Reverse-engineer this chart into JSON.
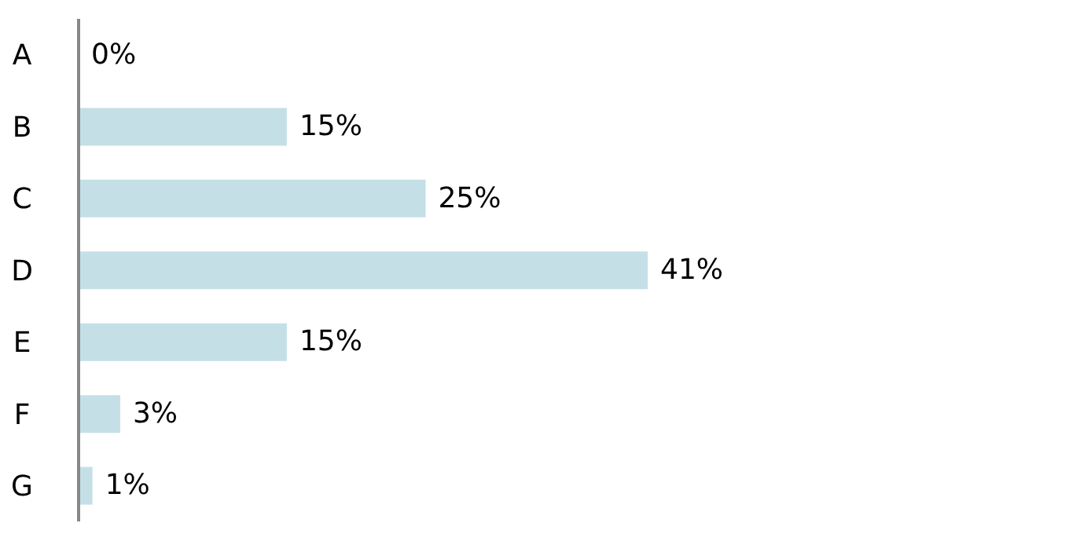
{
  "chart_data": {
    "type": "bar",
    "orientation": "horizontal",
    "categories": [
      "A",
      "B",
      "C",
      "D",
      "E",
      "F",
      "G"
    ],
    "values": [
      0,
      15,
      25,
      41,
      15,
      3,
      1
    ],
    "color": "#c5dfe7",
    "value_labels": [
      "0%",
      "15%",
      "25%",
      "41%",
      "15%",
      "3%",
      "1%"
    ]
  }
}
